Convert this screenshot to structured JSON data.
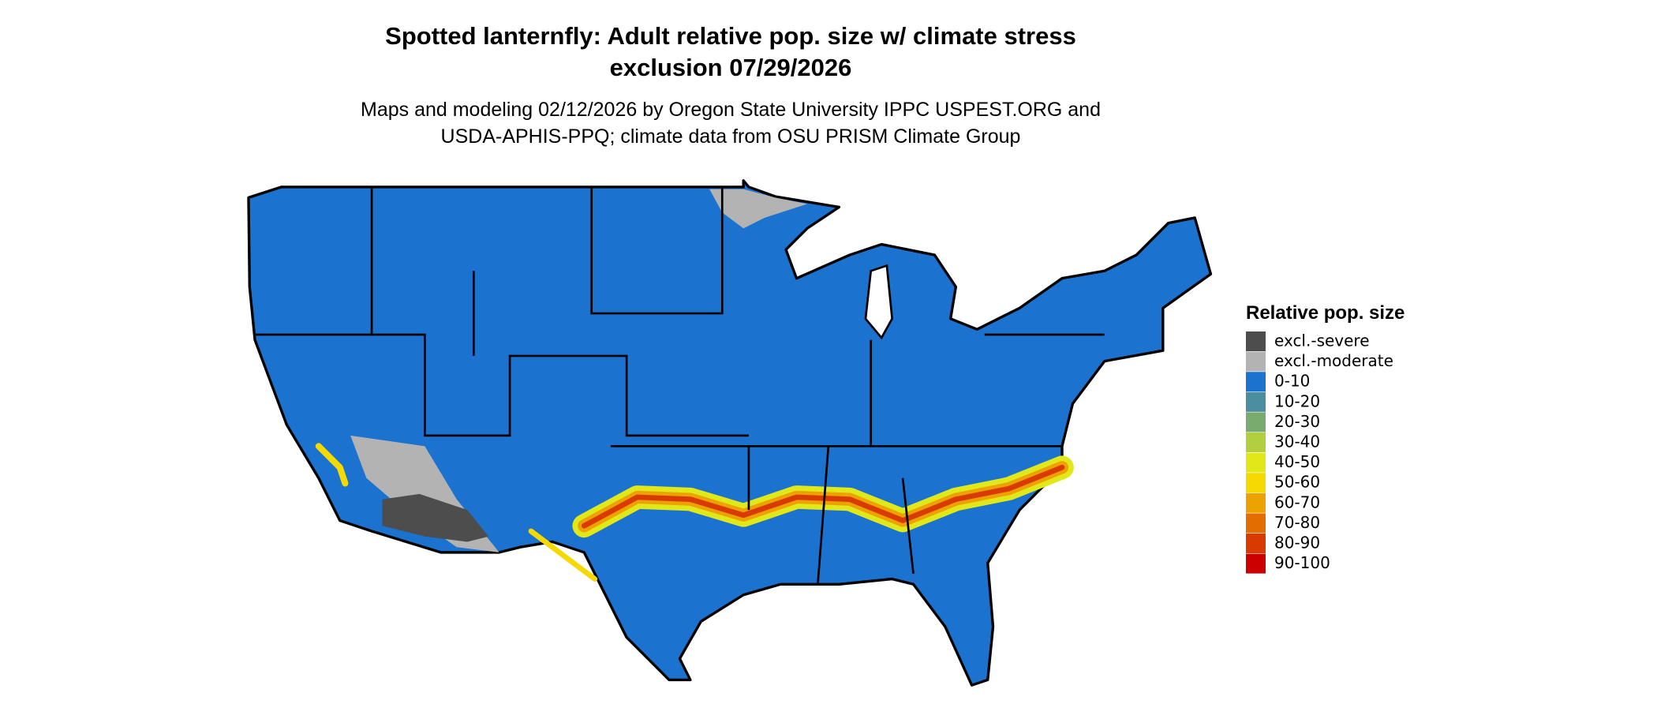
{
  "header": {
    "title_lines": [
      "Spotted lanternfly: Adult relative pop. size w/ climate stress",
      "exclusion 07/29/2026"
    ],
    "subtitle_lines": [
      "Maps and modeling 02/12/2026 by Oregon State University IPPC USPEST.ORG and",
      "USDA-APHIS-PPQ; climate data from OSU PRISM Climate Group"
    ]
  },
  "legend": {
    "title": "Relative pop. size",
    "items": [
      {
        "label": "excl.-severe",
        "color": "#4d4d4d"
      },
      {
        "label": "excl.-moderate",
        "color": "#b3b3b3"
      },
      {
        "label": "0-10",
        "color": "#1b73cf"
      },
      {
        "label": "10-20",
        "color": "#4a8ea0"
      },
      {
        "label": "20-30",
        "color": "#7aab6e"
      },
      {
        "label": "30-40",
        "color": "#b2cf3e"
      },
      {
        "label": "40-50",
        "color": "#e1e81a"
      },
      {
        "label": "50-60",
        "color": "#f5d900"
      },
      {
        "label": "60-70",
        "color": "#eca200"
      },
      {
        "label": "70-80",
        "color": "#e36d00"
      },
      {
        "label": "80-90",
        "color": "#d93a00"
      },
      {
        "label": "90-100",
        "color": "#cc0000"
      }
    ]
  }
}
